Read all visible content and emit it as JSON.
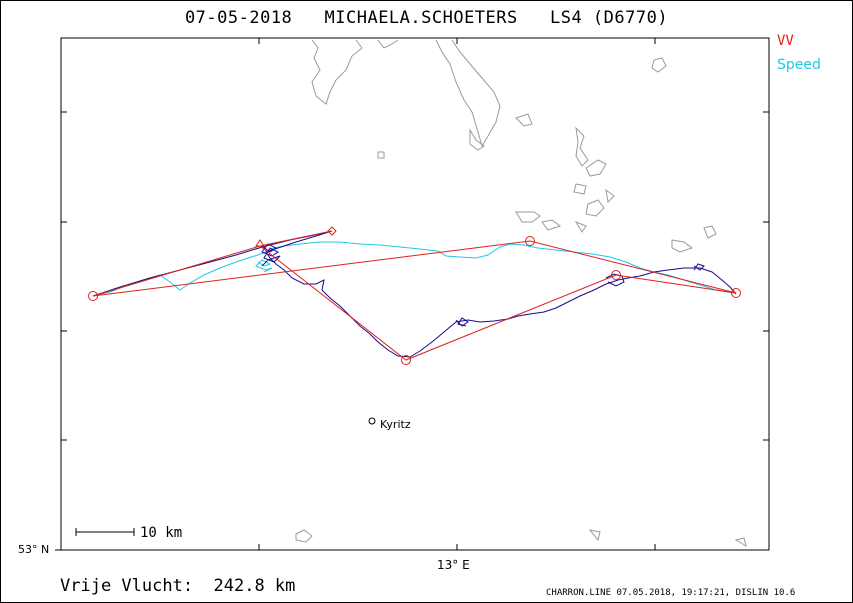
{
  "header": {
    "date": "07-05-2018",
    "pilot": "MICHAELA.SCHOETERS",
    "glider": "LS4 (D6770)"
  },
  "legend": {
    "vv_label": "VV",
    "vv_color": "#e0201a",
    "speed_label": "Speed",
    "speed_color": "#1ec8e6"
  },
  "colors": {
    "track": "#1a0a8c",
    "task": "#e0201a",
    "speed_track": "#1ec8e6",
    "coastline": "#9a9a9a"
  },
  "axes": {
    "lat_label": "53° N",
    "lon_label": "13° E"
  },
  "scale_bar": {
    "label": "10 km"
  },
  "town": {
    "name": "Kyritz"
  },
  "summary": {
    "distance_text": "Vrije Vlucht:  242.8 km"
  },
  "footer": {
    "text": "CHARRON.LINE 07.05.2018, 19:17:21, DISLIN 10.6"
  }
}
